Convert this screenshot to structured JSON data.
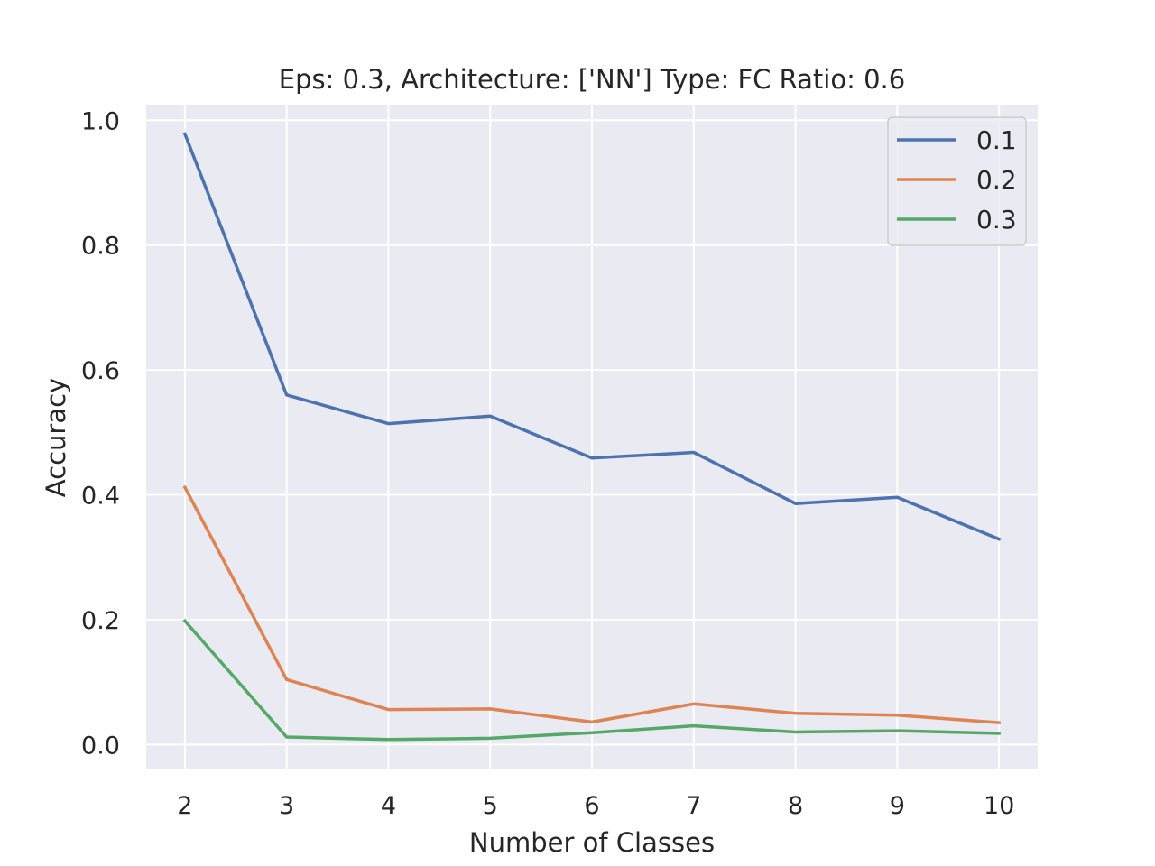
{
  "chart_data": {
    "type": "line",
    "title": "Eps: 0.3, Architecture: ['NN'] Type: FC Ratio: 0.6",
    "xlabel": "Number of Classes",
    "ylabel": "Accuracy",
    "x": [
      2,
      3,
      4,
      5,
      6,
      7,
      8,
      9,
      10
    ],
    "xticks": [
      "2",
      "3",
      "4",
      "5",
      "6",
      "7",
      "8",
      "9",
      "10"
    ],
    "yticks": [
      "0.0",
      "0.2",
      "0.4",
      "0.6",
      "0.8",
      "1.0"
    ],
    "xlim": [
      1.62,
      10.38
    ],
    "ylim": [
      -0.04,
      1.025
    ],
    "grid": true,
    "legend_position": "top-right",
    "series": [
      {
        "name": "0.1",
        "color": "#4c72b0",
        "values": [
          0.978,
          0.56,
          0.514,
          0.526,
          0.459,
          0.468,
          0.386,
          0.396,
          0.329
        ]
      },
      {
        "name": "0.2",
        "color": "#dd8452",
        "values": [
          0.412,
          0.104,
          0.056,
          0.057,
          0.036,
          0.065,
          0.05,
          0.047,
          0.035
        ]
      },
      {
        "name": "0.3",
        "color": "#55a868",
        "values": [
          0.198,
          0.012,
          0.008,
          0.01,
          0.019,
          0.03,
          0.02,
          0.022,
          0.018
        ]
      }
    ]
  },
  "colors": {
    "plot_background": "#eaeaf2",
    "grid": "#ffffff",
    "text": "#262626"
  }
}
